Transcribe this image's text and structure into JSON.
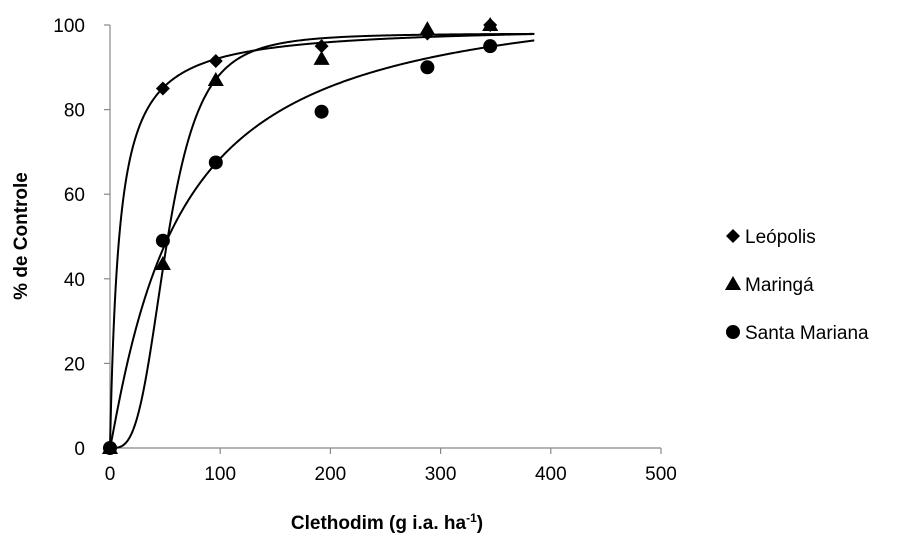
{
  "chart_data": {
    "type": "scatter",
    "xlabel": "Clethodim (g i.a. ha",
    "xlabel_sup": "-1",
    "xlabel_tail": ")",
    "ylabel": "% de Controle",
    "xlim": [
      0,
      500
    ],
    "ylim": [
      0,
      100
    ],
    "xticks": [
      0,
      100,
      200,
      300,
      400,
      500
    ],
    "yticks": [
      0,
      20,
      40,
      60,
      80,
      100
    ],
    "x_tick_labels": [
      "0",
      "100",
      "200",
      "300",
      "400",
      "500"
    ],
    "y_tick_labels": [
      "0",
      "20",
      "40",
      "60",
      "80",
      "100"
    ],
    "grid": false,
    "legend_position": "right",
    "series": [
      {
        "name": "Leópolis",
        "marker": "diamond",
        "color": "#000000",
        "points": [
          [
            0,
            0
          ],
          [
            48,
            85
          ],
          [
            96,
            91.5
          ],
          [
            192,
            95
          ],
          [
            288,
            98
          ],
          [
            345,
            100
          ]
        ],
        "fit": {
          "model": "hyperbolic",
          "a": 100,
          "b": 8.4,
          "x_max": 385
        }
      },
      {
        "name": "Maringá",
        "marker": "triangle",
        "color": "#000000",
        "points": [
          [
            0,
            0
          ],
          [
            48,
            43.5
          ],
          [
            96,
            87
          ],
          [
            192,
            92
          ],
          [
            288,
            99
          ],
          [
            345,
            100
          ]
        ],
        "fit": {
          "model": "log-logistic",
          "a": 98,
          "b": 3.4,
          "c": 52,
          "x_max": 385
        }
      },
      {
        "name": "Santa Mariana",
        "marker": "circle",
        "color": "#000000",
        "points": [
          [
            0,
            0
          ],
          [
            48,
            49
          ],
          [
            96,
            67.5
          ],
          [
            192,
            79.5
          ],
          [
            288,
            90
          ],
          [
            345,
            95
          ]
        ],
        "fit": {
          "model": "log-logistic",
          "a": 110,
          "b": 1.08,
          "c": 63,
          "x_max": 385
        }
      }
    ]
  }
}
